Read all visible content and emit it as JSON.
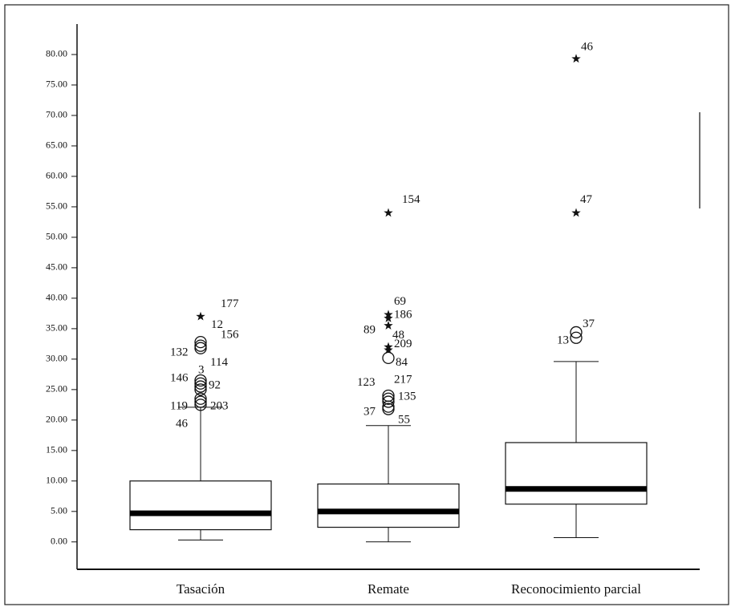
{
  "chart_data": {
    "type": "box",
    "categories": [
      "Tasación",
      "Remate",
      "Reconocimiento parcial"
    ],
    "ylim": [
      -4.5,
      85
    ],
    "yticks": [
      {
        "value": 0,
        "label": "0.00"
      },
      {
        "value": 5,
        "label": "5.00"
      },
      {
        "value": 10,
        "label": "10.00"
      },
      {
        "value": 15,
        "label": "15.00"
      },
      {
        "value": 20,
        "label": "20.00"
      },
      {
        "value": 25,
        "label": "25.00"
      },
      {
        "value": 30,
        "label": "30.00"
      },
      {
        "value": 35,
        "label": "35.00"
      },
      {
        "value": 40,
        "label": "40.00"
      },
      {
        "value": 45,
        "label": "45.00"
      },
      {
        "value": 50,
        "label": "50.00"
      },
      {
        "value": 55,
        "label": "55.00"
      },
      {
        "value": 60,
        "label": "60.00"
      },
      {
        "value": 65,
        "label": "65.00"
      },
      {
        "value": 70,
        "label": "70.00"
      },
      {
        "value": 75,
        "label": "75.00"
      },
      {
        "value": 80,
        "label": "80.00"
      }
    ],
    "boxes": [
      {
        "min": 0.3,
        "q1": 2.0,
        "median": 4.7,
        "q3": 10.0,
        "max": 22.1,
        "outliers": [
          {
            "value": 37.0,
            "label": "177",
            "kind": "star"
          },
          {
            "value": 32.8,
            "label": "12",
            "kind": "circle"
          },
          {
            "value": 32.2,
            "label": "156",
            "kind": "circle"
          },
          {
            "value": 31.8,
            "label": "132",
            "kind": "circle"
          },
          {
            "value": 26.5,
            "label": "114",
            "kind": "circle"
          },
          {
            "value": 26.0,
            "label": "3",
            "kind": "circle"
          },
          {
            "value": 25.5,
            "label": "146",
            "kind": "circle"
          },
          {
            "value": 25.0,
            "label": "92",
            "kind": "circle"
          },
          {
            "value": 23.5,
            "label": "119",
            "kind": "circle"
          },
          {
            "value": 23.0,
            "label": "203",
            "kind": "circle"
          },
          {
            "value": 22.5,
            "label": "46",
            "kind": "circle"
          }
        ]
      },
      {
        "min": 0.0,
        "q1": 2.4,
        "median": 5.0,
        "q3": 9.5,
        "max": 19.1,
        "outliers": [
          {
            "value": 54.0,
            "label": "154",
            "kind": "star"
          },
          {
            "value": 37.3,
            "label": "69",
            "kind": "star"
          },
          {
            "value": 36.7,
            "label": "186",
            "kind": "star"
          },
          {
            "value": 35.5,
            "label": "89",
            "kind": "star"
          },
          {
            "value": 32.0,
            "label": "48",
            "kind": "star"
          },
          {
            "value": 31.5,
            "label": "209",
            "kind": "star"
          },
          {
            "value": 30.2,
            "label": "84",
            "kind": "circle"
          },
          {
            "value": 24.0,
            "label": "123",
            "kind": "circle"
          },
          {
            "value": 23.5,
            "label": "217",
            "kind": "circle"
          },
          {
            "value": 23.0,
            "label": "135",
            "kind": "circle"
          },
          {
            "value": 22.2,
            "label": "37",
            "kind": "circle"
          },
          {
            "value": 21.8,
            "label": "55",
            "kind": "circle"
          }
        ]
      },
      {
        "min": 0.7,
        "q1": 6.2,
        "median": 8.7,
        "q3": 16.3,
        "max": 29.6,
        "outliers": [
          {
            "value": 79.3,
            "label": "46",
            "kind": "star"
          },
          {
            "value": 54.0,
            "label": "47",
            "kind": "star"
          },
          {
            "value": 34.4,
            "label": "37",
            "kind": "circle"
          },
          {
            "value": 33.5,
            "label": "13",
            "kind": "circle"
          }
        ]
      }
    ]
  }
}
